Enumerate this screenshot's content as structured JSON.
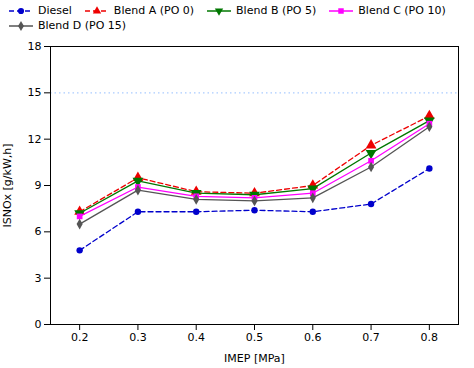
{
  "chart_data": {
    "type": "line",
    "xlabel": "IMEP [MPa]",
    "ylabel": "ISNOx [g/kW,h]",
    "x": [
      0.2,
      0.3,
      0.4,
      0.5,
      0.6,
      0.7,
      0.8
    ],
    "series": [
      {
        "name": "Diesel",
        "color": "#0000cc",
        "marker": "circle",
        "line_style": "dashed",
        "values": [
          4.8,
          7.3,
          7.3,
          7.4,
          7.3,
          7.8,
          10.1
        ]
      },
      {
        "name": "Blend A (PO 0)",
        "color": "#ee0000",
        "marker": "triangle-up",
        "line_style": "dashed",
        "values": [
          7.3,
          9.5,
          8.6,
          8.5,
          9.0,
          11.6,
          13.5
        ]
      },
      {
        "name": "Blend B (PO 5)",
        "color": "#007700",
        "marker": "triangle-down",
        "line_style": "solid",
        "values": [
          7.2,
          9.3,
          8.5,
          8.4,
          8.8,
          11.1,
          13.2
        ]
      },
      {
        "name": "Blend C (PO 10)",
        "color": "#ff00ff",
        "marker": "square",
        "line_style": "solid",
        "values": [
          7.0,
          8.9,
          8.3,
          8.2,
          8.5,
          10.6,
          13.0
        ]
      },
      {
        "name": "Blend D (PO 15)",
        "color": "#555555",
        "marker": "diamond",
        "line_style": "solid",
        "values": [
          6.5,
          8.7,
          8.1,
          8.0,
          8.2,
          10.2,
          12.8
        ]
      }
    ],
    "reference_line": {
      "value": 15.0,
      "color": "#aaccff",
      "line_style": "dotted"
    },
    "xlim": [
      0.15,
      0.85
    ],
    "xticks": [
      0.2,
      0.3,
      0.4,
      0.5,
      0.6,
      0.7,
      0.8
    ],
    "ylim": [
      0,
      18
    ],
    "yticks": [
      0,
      3,
      6,
      9,
      12,
      15,
      18
    ],
    "grid": false,
    "legend": "upper left"
  }
}
